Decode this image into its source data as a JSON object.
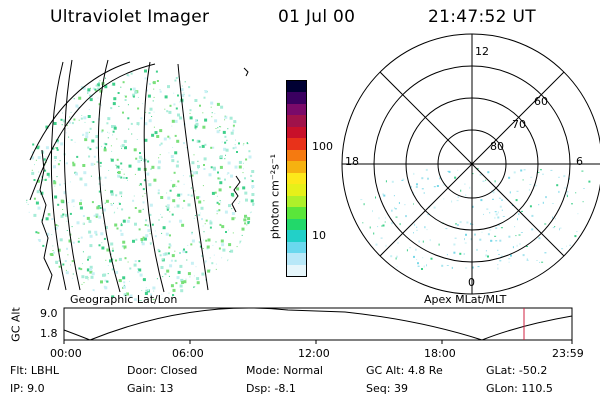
{
  "header": {
    "title": "Ultraviolet Imager",
    "date": "01 Jul 00",
    "time": "21:47:52 UT"
  },
  "colorbar": {
    "unit_label": "photon cm⁻²s⁻¹",
    "ticks": [
      "100",
      "10"
    ],
    "colors": [
      "#000033",
      "#3a0060",
      "#7a0a6a",
      "#a0124a",
      "#c8102a",
      "#e8321a",
      "#f57a10",
      "#f6b210",
      "#fde81a",
      "#e6f01a",
      "#aef02a",
      "#5ae63a",
      "#22d86a",
      "#22d0c8",
      "#6ad8ee",
      "#b8e8f8",
      "#e6f6fb"
    ]
  },
  "geo_panel": {
    "caption": "Geographic Lat/Lon",
    "dot_color": "#3fd08a"
  },
  "polar_panel": {
    "caption": "Apex MLat/MLT",
    "mlt_labels": [
      "12",
      "18",
      "6",
      "0"
    ],
    "mlat_labels": [
      "60",
      "70",
      "80"
    ]
  },
  "timeline": {
    "ylabel": "GC Alt",
    "y_ticks": [
      "9.0",
      "1.8"
    ],
    "x_ticks": [
      "00:00",
      "06:00",
      "12:00",
      "18:00",
      "23:59"
    ],
    "marker_color": "#d02040"
  },
  "info": {
    "row1": [
      {
        "label": "Flt:",
        "value": "LBHL"
      },
      {
        "label": "Door:",
        "value": "Closed"
      },
      {
        "label": "Mode:",
        "value": "Normal"
      },
      {
        "label": "GC Alt:",
        "value": "4.8 Re"
      },
      {
        "label": "GLat:",
        "value": "-50.2"
      }
    ],
    "row2": [
      {
        "label": "IP:",
        "value": "9.0"
      },
      {
        "label": "Gain:",
        "value": "13"
      },
      {
        "label": "Dsp:",
        "value": "-8.1"
      },
      {
        "label": "Seq:",
        "value": "39"
      },
      {
        "label": "GLon:",
        "value": "110.5"
      }
    ]
  }
}
